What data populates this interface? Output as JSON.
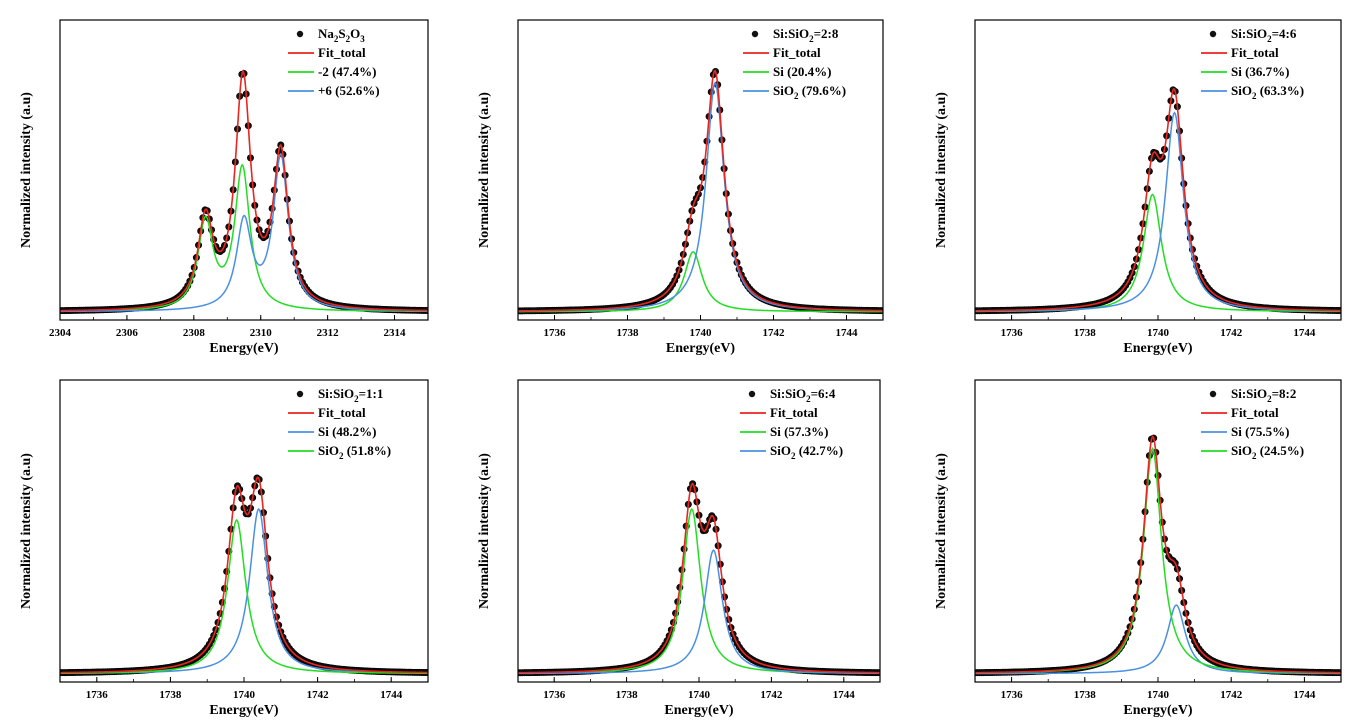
{
  "colors": {
    "data": "#111111",
    "fit": "#e8261f",
    "green": "#22dd22",
    "blue": "#4a90e2"
  },
  "chart_data": [
    {
      "type": "line",
      "xlabel": "Energy(eV)",
      "ylabel": "Normalized intensity (a.u)",
      "xlim": [
        2304,
        2315
      ],
      "ylim": [
        0,
        1.1
      ],
      "xticks": [
        "2304",
        "2306",
        "2308",
        "2310",
        "2312",
        "2314"
      ],
      "legend": {
        "data": {
          "main": "Na",
          "sub1": "2",
          "mid": "S",
          "sub2": "2",
          "mid2": "O",
          "sub3": "3"
        },
        "fit": "Fit_total",
        "comp1": "-2 (47.4%)",
        "comp2": "+6 (52.6%)"
      },
      "components": [
        {
          "name": "-2 (47.4%)",
          "color": "green",
          "peaks": [
            {
              "center": 2308.35,
              "amp": 0.32,
              "width": 0.55
            },
            {
              "center": 2309.45,
              "amp": 0.52,
              "width": 0.55
            }
          ]
        },
        {
          "name": "+6 (52.6%)",
          "color": "blue",
          "peaks": [
            {
              "center": 2309.5,
              "amp": 0.32,
              "width": 0.55
            },
            {
              "center": 2310.6,
              "amp": 0.56,
              "width": 0.55
            }
          ]
        }
      ]
    },
    {
      "type": "line",
      "xlabel": "Energy(eV)",
      "ylabel": "Normalized intensity (a.u)",
      "xlim": [
        1735,
        1745
      ],
      "ylim": [
        0,
        1.1
      ],
      "xticks": [
        "1736",
        "1738",
        "1740",
        "1742",
        "1744"
      ],
      "legend": {
        "data": {
          "main": "Si:SiO",
          "sub1": "2",
          "tail": "=2:8"
        },
        "fit": "Fit_total",
        "comp1": {
          "main": "Si (20.4%)"
        },
        "comp2": {
          "main": "SiO",
          "sub": "2",
          "tail": " (79.6%)"
        }
      },
      "components": [
        {
          "name": "Si (20.4%)",
          "color": "green",
          "peaks": [
            {
              "center": 1739.8,
              "amp": 0.22,
              "width": 0.6
            }
          ]
        },
        {
          "name": "SiO2 (79.6%)",
          "color": "blue",
          "peaks": [
            {
              "center": 1740.4,
              "amp": 0.84,
              "width": 0.6
            }
          ]
        }
      ]
    },
    {
      "type": "line",
      "xlabel": "Energy(eV)",
      "ylabel": "Normalized intensity (a.u)",
      "xlim": [
        1735,
        1745
      ],
      "ylim": [
        0,
        1.1
      ],
      "xticks": [
        "1736",
        "1738",
        "1740",
        "1742",
        "1744"
      ],
      "legend": {
        "data": {
          "main": "Si:SiO",
          "sub1": "2",
          "tail": "=4:6"
        },
        "fit": "Fit_total",
        "comp1": {
          "main": "Si (36.7%)"
        },
        "comp2": {
          "main": "SiO",
          "sub": "2",
          "tail": " (63.3%)"
        }
      },
      "components": [
        {
          "name": "Si (36.7%)",
          "color": "green",
          "peaks": [
            {
              "center": 1739.85,
              "amp": 0.43,
              "width": 0.6
            }
          ]
        },
        {
          "name": "SiO2 (63.3%)",
          "color": "blue",
          "peaks": [
            {
              "center": 1740.45,
              "amp": 0.73,
              "width": 0.6
            }
          ]
        }
      ]
    },
    {
      "type": "line",
      "xlabel": "Energy(eV)",
      "ylabel": "Normalized intensity (a.u)",
      "xlim": [
        1735,
        1745
      ],
      "ylim": [
        0,
        1.1
      ],
      "xticks": [
        "1736",
        "1738",
        "1740",
        "1742",
        "1744"
      ],
      "legend": {
        "data": {
          "main": "Si:SiO",
          "sub1": "2",
          "tail": "=1:1"
        },
        "fit": "Fit_total",
        "comp1": {
          "main": "Si (48.2%)"
        },
        "comp2": {
          "main": "SiO",
          "sub": "2",
          "tail": " (51.8%)"
        }
      },
      "components": [
        {
          "name": "Si (48.2%)",
          "color": "blue",
          "peaks": [
            {
              "center": 1740.4,
              "amp": 0.6,
              "width": 0.6
            }
          ]
        },
        {
          "name": "SiO2 (51.8%)",
          "color": "green",
          "peaks": [
            {
              "center": 1739.8,
              "amp": 0.56,
              "width": 0.6
            }
          ]
        }
      ]
    },
    {
      "type": "line",
      "xlabel": "Energy(eV)",
      "ylabel": "Normalized intensity (a.u)",
      "xlim": [
        1735,
        1745
      ],
      "ylim": [
        0,
        1.1
      ],
      "xticks": [
        "1736",
        "1738",
        "1740",
        "1742",
        "1744"
      ],
      "legend": {
        "data": {
          "main": "Si:SiO",
          "sub1": "2",
          "tail": "=6:4"
        },
        "fit": "Fit_total",
        "comp1": {
          "main": "Si (57.3%)"
        },
        "comp2": {
          "main": "SiO",
          "sub": "2",
          "tail": " (42.7%)"
        }
      },
      "components": [
        {
          "name": "Si (57.3%)",
          "color": "green",
          "peaks": [
            {
              "center": 1739.8,
              "amp": 0.6,
              "width": 0.6
            }
          ]
        },
        {
          "name": "SiO2 (42.7%)",
          "color": "blue",
          "peaks": [
            {
              "center": 1740.4,
              "amp": 0.45,
              "width": 0.6
            }
          ]
        }
      ]
    },
    {
      "type": "line",
      "xlabel": "Energy(eV)",
      "ylabel": "Normalized intensity (a.u)",
      "xlim": [
        1735,
        1745
      ],
      "ylim": [
        0,
        1.1
      ],
      "xticks": [
        "1736",
        "1738",
        "1740",
        "1742",
        "1744"
      ],
      "legend": {
        "data": {
          "main": "Si:SiO",
          "sub1": "2",
          "tail": "=8:2"
        },
        "fit": "Fit_total",
        "comp1": {
          "main": "Si (75.5%)"
        },
        "comp2": {
          "main": "SiO",
          "sub": "2",
          "tail": " (24.5%)"
        }
      },
      "components": [
        {
          "name": "Si (75.5%)",
          "color": "blue",
          "peaks": [
            {
              "center": 1740.5,
              "amp": 0.25,
              "width": 0.6
            }
          ]
        },
        {
          "name": "SiO2 (24.5%)",
          "color": "green",
          "peaks": [
            {
              "center": 1739.85,
              "amp": 0.82,
              "width": 0.6
            }
          ]
        }
      ]
    }
  ]
}
